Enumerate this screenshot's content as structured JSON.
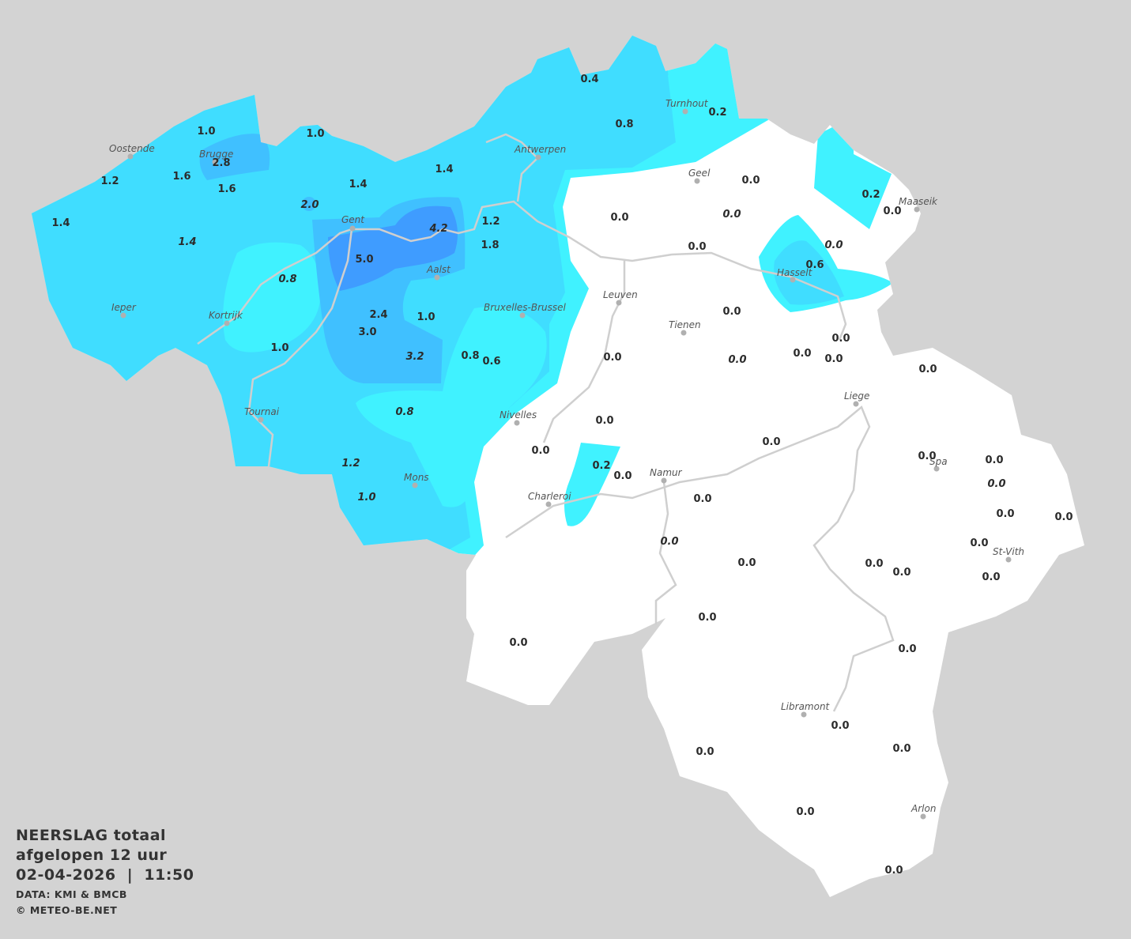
{
  "title": {
    "line1": "NEERSLAG totaal",
    "line2": "afgelopen 12 uur",
    "line3": "02-04-2026  |  11:50",
    "source": "DATA: KMI & BMCB",
    "copyright": "© METEO-BE.NET"
  },
  "colors": {
    "background": "#d3d3d3",
    "land_dry": "#ffffff",
    "precip_0_1": "#40f2ff",
    "precip_1_2": "#40ddff",
    "precip_2_3": "#40c0ff",
    "precip_4_5": "#3f9cff",
    "rivers": "#cfcfcf",
    "city_dot": "#b0b0b0"
  },
  "units": "mm",
  "cities": [
    "Oostende",
    "Brugge",
    "Gent",
    "Antwerpen",
    "Turnhout",
    "Geel",
    "Maaseik",
    "Hasselt",
    "Aalst",
    "Kortrijk",
    "Ieper",
    "Leuven",
    "Tienen",
    "Bruxelles-Brussel",
    "Liege",
    "Tournai",
    "Nivelles",
    "Mons",
    "Namur",
    "Charleroi",
    "Spa",
    "St-Vith",
    "Libramont",
    "Arlon"
  ],
  "measurements": [
    {
      "v": "0.4"
    },
    {
      "v": "0.8"
    },
    {
      "v": "0.2"
    },
    {
      "v": "1.0"
    },
    {
      "v": "1.0"
    },
    {
      "v": "2.8"
    },
    {
      "v": "1.2"
    },
    {
      "v": "1.6"
    },
    {
      "v": "1.6"
    },
    {
      "v": "1.4"
    },
    {
      "v": "1.4"
    },
    {
      "v": "1.4"
    },
    {
      "v": "1.4",
      "italic": true
    },
    {
      "v": "2.0",
      "italic": true
    },
    {
      "v": "4.2",
      "italic": true
    },
    {
      "v": "1.2"
    },
    {
      "v": "1.8"
    },
    {
      "v": "5.0"
    },
    {
      "v": "0.8",
      "italic": true
    },
    {
      "v": "2.4"
    },
    {
      "v": "1.0"
    },
    {
      "v": "3.0"
    },
    {
      "v": "1.0"
    },
    {
      "v": "3.2",
      "italic": true
    },
    {
      "v": "0.8"
    },
    {
      "v": "0.6"
    },
    {
      "v": "0.8",
      "italic": true
    },
    {
      "v": "1.2",
      "italic": true
    },
    {
      "v": "1.0",
      "italic": true
    },
    {
      "v": "0.0"
    },
    {
      "v": "0.0"
    },
    {
      "v": "0.0",
      "italic": true
    },
    {
      "v": "0.2"
    },
    {
      "v": "0.0"
    },
    {
      "v": "0.0",
      "italic": true
    },
    {
      "v": "0.0"
    },
    {
      "v": "0.6"
    },
    {
      "v": "0.0"
    },
    {
      "v": "0.0"
    },
    {
      "v": "0.0",
      "italic": true
    },
    {
      "v": "0.0"
    },
    {
      "v": "0.0"
    },
    {
      "v": "0.0"
    },
    {
      "v": "0.0"
    },
    {
      "v": "0.0"
    },
    {
      "v": "0.0"
    },
    {
      "v": "0.0"
    },
    {
      "v": "0.2"
    },
    {
      "v": "0.0"
    },
    {
      "v": "0.0"
    },
    {
      "v": "0.0"
    },
    {
      "v": "0.0",
      "italic": true
    },
    {
      "v": "0.0"
    },
    {
      "v": "0.0",
      "italic": true
    },
    {
      "v": "0.0"
    },
    {
      "v": "0.0"
    },
    {
      "v": "0.0"
    },
    {
      "v": "0.0"
    },
    {
      "v": "0.0"
    },
    {
      "v": "0.0"
    },
    {
      "v": "0.0"
    },
    {
      "v": "0.0"
    },
    {
      "v": "0.0"
    },
    {
      "v": "0.0"
    },
    {
      "v": "0.0"
    },
    {
      "v": "0.0"
    },
    {
      "v": "0.0"
    },
    {
      "v": "0.0"
    },
    {
      "v": "0.0"
    },
    {
      "v": "0.0"
    }
  ]
}
